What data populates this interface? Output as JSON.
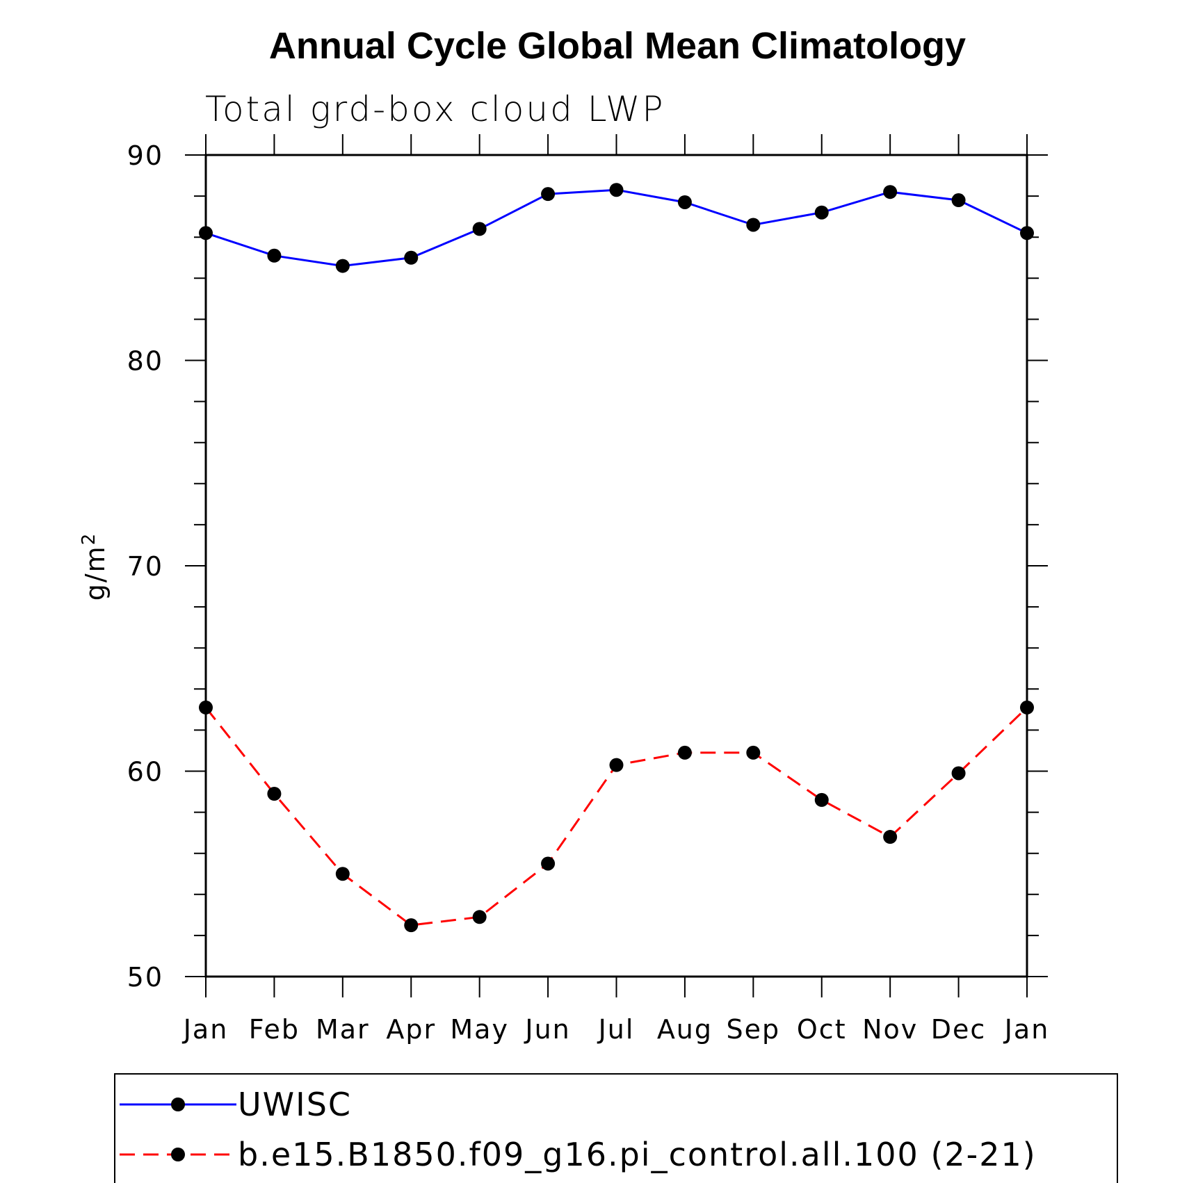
{
  "chart_data": {
    "type": "line",
    "title": "Annual Cycle Global Mean Climatology",
    "subtitle": "Total grd-box cloud LWP",
    "ylabel": "g/m",
    "ylabel_superscript": "2",
    "categories": [
      "Jan",
      "Feb",
      "Mar",
      "Apr",
      "May",
      "Jun",
      "Jul",
      "Aug",
      "Sep",
      "Oct",
      "Nov",
      "Dec",
      "Jan"
    ],
    "ylim": [
      50,
      90
    ],
    "yticks": [
      50,
      60,
      70,
      80,
      90
    ],
    "grid": false,
    "legend_position": "bottom",
    "series": [
      {
        "name": "UWISC",
        "color": "#0000ff",
        "dash": "solid",
        "marker": "filled-circle",
        "values": [
          86.2,
          85.1,
          84.6,
          85.0,
          86.4,
          88.1,
          88.3,
          87.7,
          86.6,
          87.2,
          88.2,
          87.8,
          86.2
        ]
      },
      {
        "name": "b.e15.B1850.f09_g16.pi_control.all.100 (2-21)",
        "color": "#ff0000",
        "dash": "dashed",
        "marker": "filled-circle",
        "values": [
          63.1,
          58.9,
          55.0,
          52.5,
          52.9,
          55.5,
          60.3,
          60.9,
          60.9,
          58.6,
          56.8,
          59.9,
          63.1
        ]
      }
    ]
  }
}
